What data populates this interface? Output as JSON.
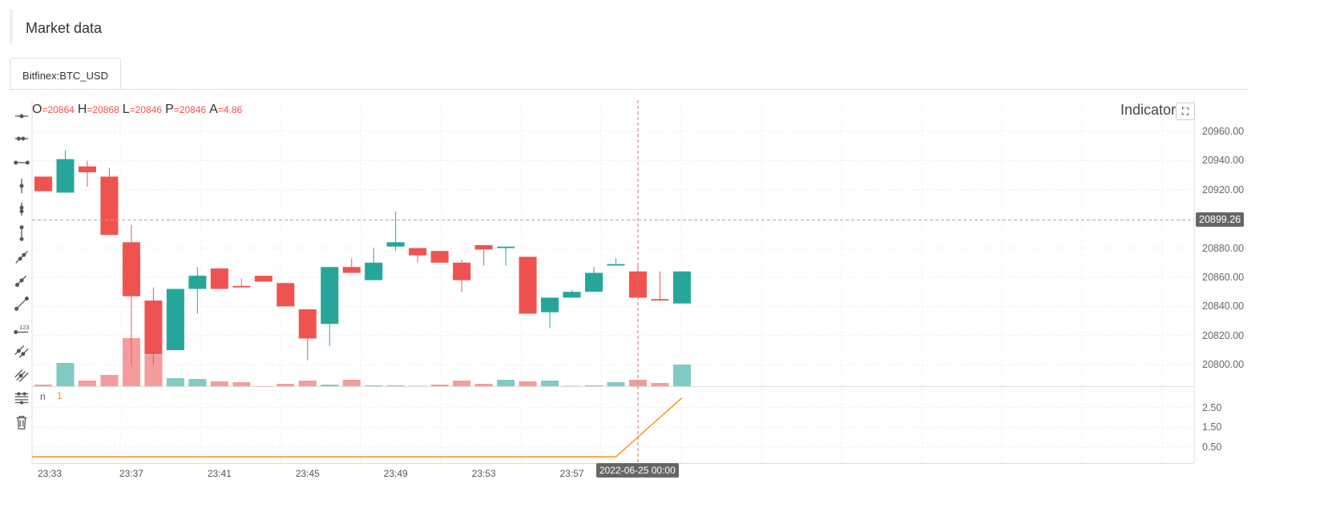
{
  "header": {
    "title": "Market data",
    "tab": "Bitfinex:BTC_USD"
  },
  "legend": {
    "o_label": "O",
    "o": "=20864",
    "h_label": "H",
    "h": "=20868",
    "l_label": "L",
    "l": "=20846",
    "p_label": "P",
    "p": "=20846",
    "a_label": "A",
    "a": "=4.86"
  },
  "indicator": {
    "title": "Indicator",
    "fullscreen_icon": "expand-icon",
    "n_label": "n",
    "n_value": "1"
  },
  "crosshair": {
    "price": "20899.26",
    "time": "2022-06-25 00:00"
  },
  "colors": {
    "up": "#26a69a",
    "down": "#ef5350",
    "up_vol": "#80cbc4",
    "down_vol": "#f49c9b",
    "indicator": "#f7931a"
  },
  "toolbar": [
    "horizontal-ray-icon",
    "horizontal-segment-icon",
    "horizontal-line-icon",
    "vertical-ray-icon",
    "vertical-segment-icon",
    "vertical-line-icon",
    "trend-ray-icon",
    "trend-segment-icon",
    "trend-line-icon",
    "price-label-icon",
    "parallel-channel-icon",
    "pitchfork-icon",
    "fib-levels-icon",
    "delete-icon"
  ],
  "chart_data": {
    "type": "candlestick",
    "price_ticks": [
      "20960.00",
      "20940.00",
      "20920.00",
      "20880.00",
      "20860.00",
      "20840.00",
      "20820.00",
      "20800.00"
    ],
    "price_tick_values": [
      20960,
      20940,
      20920,
      20880,
      20860,
      20840,
      20820,
      20800
    ],
    "indicator_ticks": [
      "2.50",
      "1.50",
      "0.50"
    ],
    "indicator_tick_values": [
      2.5,
      1.5,
      0.5
    ],
    "time_ticks": [
      "23:33",
      "23:37",
      "23:41",
      "23:45",
      "23:49",
      "23:53",
      "23:57"
    ],
    "time_tick_index": [
      0,
      4,
      8,
      12,
      16,
      20,
      24
    ],
    "candles": [
      [
        20929,
        20929,
        20919,
        20919
      ],
      [
        20918,
        20947,
        20918,
        20941
      ],
      [
        20936,
        20940,
        20922,
        20932
      ],
      [
        20929,
        20935,
        20889,
        20889
      ],
      [
        20884,
        20896,
        20800,
        20847
      ],
      [
        20844,
        20853,
        20800,
        20807
      ],
      [
        20810,
        20852,
        20810,
        20852
      ],
      [
        20852,
        20867,
        20835,
        20861
      ],
      [
        20866,
        20866,
        20852,
        20852
      ],
      [
        20854,
        20859,
        20853,
        20853
      ],
      [
        20861,
        20861,
        20857,
        20857
      ],
      [
        20856,
        20856,
        20840,
        20840
      ],
      [
        20838,
        20838,
        20803,
        20818
      ],
      [
        20828,
        20867,
        20813,
        20867
      ],
      [
        20867,
        20873,
        20863,
        20863
      ],
      [
        20858,
        20880,
        20858,
        20870
      ],
      [
        20881,
        20905,
        20878,
        20884
      ],
      [
        20880,
        20880,
        20870,
        20875
      ],
      [
        20878,
        20878,
        20870,
        20870
      ],
      [
        20870,
        20872,
        20850,
        20858
      ],
      [
        20882,
        20882,
        20868,
        20879
      ],
      [
        20880,
        20881,
        20868,
        20881
      ],
      [
        20874,
        20874,
        20835,
        20835
      ],
      [
        20836,
        20846,
        20825,
        20846
      ],
      [
        20846,
        20851,
        20846,
        20850
      ],
      [
        20850,
        20867,
        20850,
        20863
      ],
      [
        20868,
        20873,
        20868,
        20869
      ],
      [
        20864,
        20868,
        20846,
        20846
      ],
      [
        20845,
        20864,
        20844,
        20844
      ],
      [
        20842,
        20864,
        20842,
        20864
      ]
    ],
    "volumes": [
      2,
      29,
      7,
      14,
      60,
      39,
      10,
      9,
      6,
      5,
      0,
      3,
      7,
      2,
      8,
      1,
      1,
      0.5,
      2,
      7,
      3,
      8,
      6,
      7,
      0.5,
      1,
      5,
      8,
      4,
      27
    ],
    "indicator_n": [
      0,
      0,
      0,
      0,
      0,
      0,
      0,
      0,
      0,
      0,
      0,
      0,
      0,
      0,
      0,
      0,
      0,
      0,
      0,
      0,
      0,
      0,
      0,
      0,
      0,
      0,
      0,
      1,
      2,
      3
    ],
    "crosshair_index": 27,
    "crosshair_price": 20899.26
  }
}
